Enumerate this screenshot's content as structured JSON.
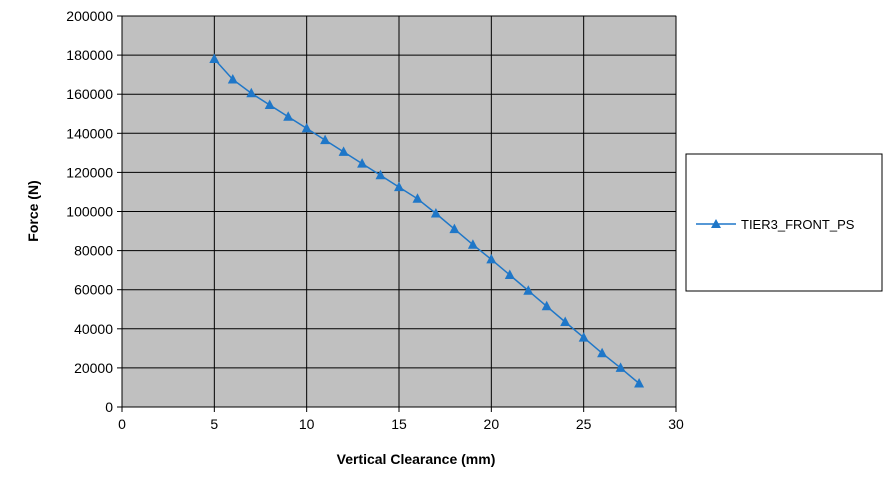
{
  "chart_data": {
    "type": "line",
    "title": "",
    "xlabel": "Vertical Clearance (mm)",
    "ylabel": "Force (N)",
    "xlim": [
      0,
      30
    ],
    "ylim": [
      0,
      200000
    ],
    "xticks": [
      0,
      5,
      10,
      15,
      20,
      25,
      30
    ],
    "yticks": [
      0,
      20000,
      40000,
      60000,
      80000,
      100000,
      120000,
      140000,
      160000,
      180000,
      200000
    ],
    "grid": true,
    "legend": "right",
    "plot_background": "#c0c0c0",
    "series": [
      {
        "name": "TIER3_FRONT_PS",
        "color": "#1f77c8",
        "marker": "triangle",
        "x": [
          5,
          6,
          7,
          8,
          9,
          10,
          11,
          12,
          13,
          14,
          15,
          16,
          17,
          18,
          19,
          20,
          21,
          22,
          23,
          24,
          25,
          26,
          27,
          28
        ],
        "y": [
          178000,
          167500,
          160500,
          154500,
          148500,
          142500,
          136500,
          130500,
          124500,
          118500,
          112500,
          106500,
          99000,
          91000,
          83000,
          75500,
          67500,
          59500,
          51500,
          43500,
          35500,
          27500,
          20000,
          12000
        ]
      }
    ]
  }
}
